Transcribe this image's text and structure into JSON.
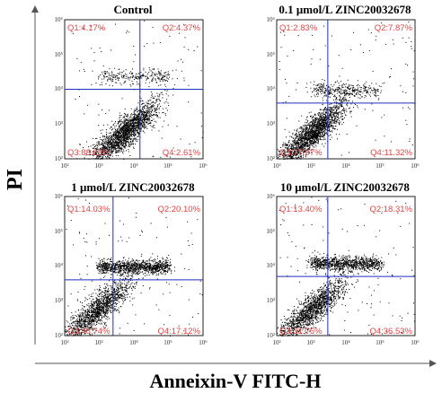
{
  "figure": {
    "ylabel": "PI",
    "xlabel": "Anneixin-V FITC-H"
  },
  "chart_data": [
    {
      "type": "scatter",
      "title": "Control",
      "xlabel": "Anneixin-V FITC-H",
      "ylabel": "PI",
      "xscale": "log",
      "yscale": "log",
      "xlim": [
        100,
        1000000
      ],
      "ylim": [
        100,
        1000000
      ],
      "x_ticks": [
        "10²",
        "10³",
        "10⁴",
        "10⁵",
        "10⁶"
      ],
      "y_ticks": [
        "10²",
        "10³",
        "10⁴",
        "10⁵",
        "10⁶"
      ],
      "gate": {
        "x": 15000,
        "y": 10000
      },
      "quadrants": {
        "Q1": "Q1:4.17%",
        "Q2": "Q2:4.37%",
        "Q3": "Q3:88.85%",
        "Q4": "Q4:2.61%"
      },
      "quadrant_percent": {
        "Q1": 4.17,
        "Q2": 4.37,
        "Q3": 88.85,
        "Q4": 2.61
      },
      "grid": false
    },
    {
      "type": "scatter",
      "title": "0.1 μmol/L  ZINC20032678",
      "xlabel": "Anneixin-V FITC-H",
      "ylabel": "PI",
      "xscale": "log",
      "yscale": "log",
      "xlim": [
        100,
        1000000
      ],
      "ylim": [
        100,
        1000000
      ],
      "x_ticks": [
        "10²",
        "10³",
        "10⁴",
        "10⁵",
        "10⁶"
      ],
      "y_ticks": [
        "10²",
        "10³",
        "10⁴",
        "10⁵",
        "10⁶"
      ],
      "gate": {
        "x": 3000,
        "y": 4000
      },
      "quadrants": {
        "Q1": "Q1:2.83%",
        "Q2": "Q2:7.87%",
        "Q3": "Q3:77.97%",
        "Q4": "Q4:11.32%"
      },
      "quadrant_percent": {
        "Q1": 2.83,
        "Q2": 7.87,
        "Q3": 77.97,
        "Q4": 11.32
      },
      "grid": false
    },
    {
      "type": "scatter",
      "title": "1 μmol/L  ZINC20032678",
      "xlabel": "Anneixin-V FITC-H",
      "ylabel": "PI",
      "xscale": "log",
      "yscale": "log",
      "xlim": [
        100,
        1000000
      ],
      "ylim": [
        100,
        1000000
      ],
      "x_ticks": [
        "10²",
        "10³",
        "10⁴",
        "10⁵",
        "10⁶"
      ],
      "y_ticks": [
        "10²",
        "10³",
        "10⁴",
        "10⁵",
        "10⁶"
      ],
      "gate": {
        "x": 2500,
        "y": 4000
      },
      "quadrants": {
        "Q1": "Q1:14.03%",
        "Q2": "Q2:20.10%",
        "Q3": "Q3:48.74%",
        "Q4": "Q4:17.12%"
      },
      "quadrant_percent": {
        "Q1": 14.03,
        "Q2": 20.1,
        "Q3": 48.74,
        "Q4": 17.12
      },
      "grid": false
    },
    {
      "type": "scatter",
      "title": "10 μmol/L  ZINC20032678",
      "xlabel": "Anneixin-V FITC-H",
      "ylabel": "PI",
      "xscale": "log",
      "yscale": "log",
      "xlim": [
        100,
        1000000
      ],
      "ylim": [
        100,
        1000000
      ],
      "x_ticks": [
        "10²",
        "10³",
        "10⁴",
        "10⁵",
        "10⁶"
      ],
      "y_ticks": [
        "10²",
        "10³",
        "10⁴",
        "10⁵",
        "10⁶"
      ],
      "gate": {
        "x": 3000,
        "y": 5000
      },
      "quadrants": {
        "Q1": "Q1:13.40%",
        "Q2": "Q2:18.31%",
        "Q3": "Q3:31.76%",
        "Q4": "Q4:36.53%"
      },
      "quadrant_percent": {
        "Q1": 13.4,
        "Q2": 18.31,
        "Q3": 31.76,
        "Q4": 36.53
      },
      "grid": false
    }
  ],
  "colors": {
    "dots": "#000000",
    "gate_lines": "#1f2fbf",
    "quadrant_text": "#e04545",
    "frame": "#222222"
  }
}
